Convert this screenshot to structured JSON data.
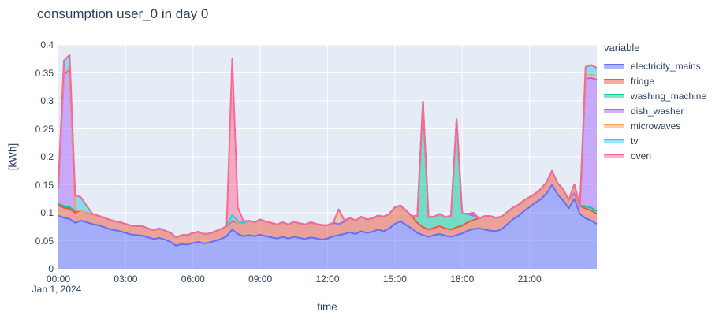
{
  "title": "consumption user_0 in day 0",
  "legend": {
    "title": "variable"
  },
  "chart_data": {
    "type": "area",
    "stacked": true,
    "title": "consumption user_0 in day 0",
    "xlabel": "time",
    "ylabel": "[kWh]",
    "x_date_label": "Jan 1, 2024",
    "x_range_hours": [
      0,
      24
    ],
    "sample_interval_minutes": 15,
    "x_tick_labels": [
      "00:00",
      "03:00",
      "06:00",
      "09:00",
      "12:00",
      "15:00",
      "18:00",
      "21:00"
    ],
    "x_tick_hours": [
      0,
      3,
      6,
      9,
      12,
      15,
      18,
      21
    ],
    "ylim": [
      0,
      0.4
    ],
    "y_ticks": [
      0,
      0.05,
      0.1,
      0.15,
      0.2,
      0.25,
      0.3,
      0.35,
      0.4
    ],
    "y_tick_labels": [
      "0",
      "0.05",
      "0.1",
      "0.15",
      "0.2",
      "0.25",
      "0.3",
      "0.35",
      "0.4"
    ],
    "plot_bg": "#E5ECF6",
    "grid_color": "#FFFFFF",
    "fill_opacity": 0.5,
    "line_width": 2,
    "legend_position": "right",
    "grid": true,
    "series": [
      {
        "name": "electricity_mains",
        "color": "#636EFA",
        "values": [
          0.095,
          0.091,
          0.089,
          0.082,
          0.086,
          0.083,
          0.08,
          0.078,
          0.075,
          0.071,
          0.069,
          0.067,
          0.064,
          0.061,
          0.06,
          0.059,
          0.056,
          0.053,
          0.055,
          0.052,
          0.048,
          0.041,
          0.044,
          0.043,
          0.046,
          0.048,
          0.045,
          0.047,
          0.05,
          0.053,
          0.058,
          0.07,
          0.062,
          0.058,
          0.06,
          0.058,
          0.061,
          0.058,
          0.056,
          0.054,
          0.057,
          0.054,
          0.057,
          0.055,
          0.053,
          0.056,
          0.054,
          0.052,
          0.054,
          0.058,
          0.06,
          0.062,
          0.065,
          0.062,
          0.067,
          0.064,
          0.066,
          0.07,
          0.067,
          0.072,
          0.08,
          0.085,
          0.078,
          0.072,
          0.064,
          0.06,
          0.057,
          0.06,
          0.062,
          0.059,
          0.057,
          0.06,
          0.063,
          0.068,
          0.071,
          0.072,
          0.07,
          0.068,
          0.067,
          0.07,
          0.079,
          0.088,
          0.094,
          0.103,
          0.11,
          0.118,
          0.124,
          0.134,
          0.15,
          0.133,
          0.122,
          0.108,
          0.125,
          0.098,
          0.09,
          0.086,
          0.08
        ]
      },
      {
        "name": "fridge",
        "color": "#EF553B",
        "values": [
          0.018,
          0.018,
          0.018,
          0.018,
          0.018,
          0.017,
          0.017,
          0.017,
          0.017,
          0.017,
          0.016,
          0.016,
          0.016,
          0.016,
          0.016,
          0.017,
          0.016,
          0.016,
          0.017,
          0.016,
          0.016,
          0.015,
          0.016,
          0.017,
          0.018,
          0.018,
          0.017,
          0.016,
          0.017,
          0.018,
          0.018,
          0.015,
          0.02,
          0.024,
          0.026,
          0.025,
          0.027,
          0.026,
          0.026,
          0.025,
          0.026,
          0.025,
          0.027,
          0.026,
          0.026,
          0.027,
          0.026,
          0.026,
          0.024,
          0.024,
          0.02,
          0.022,
          0.026,
          0.024,
          0.026,
          0.024,
          0.024,
          0.025,
          0.026,
          0.026,
          0.03,
          0.028,
          0.026,
          0.022,
          0.018,
          0.014,
          0.013,
          0.013,
          0.014,
          0.013,
          0.013,
          0.014,
          0.014,
          0.015,
          0.016,
          0.018,
          0.024,
          0.026,
          0.024,
          0.023,
          0.022,
          0.021,
          0.02,
          0.019,
          0.018,
          0.016,
          0.018,
          0.02,
          0.025,
          0.02,
          0.02,
          0.015,
          0.01,
          0.014,
          0.018,
          0.018,
          0.018
        ]
      },
      {
        "name": "washing_machine",
        "color": "#00CC96",
        "values": [
          0.003,
          0.003,
          0.003,
          0.003,
          0,
          0,
          0,
          0,
          0,
          0,
          0,
          0,
          0,
          0,
          0,
          0,
          0,
          0,
          0,
          0,
          0,
          0,
          0,
          0,
          0,
          0,
          0,
          0,
          0,
          0,
          0,
          0,
          0,
          0,
          0,
          0,
          0,
          0,
          0,
          0,
          0,
          0,
          0,
          0,
          0,
          0,
          0,
          0,
          0,
          0,
          0,
          0,
          0,
          0,
          0,
          0,
          0,
          0,
          0,
          0,
          0,
          0,
          0,
          0,
          0.012,
          0.225,
          0.022,
          0.02,
          0.022,
          0.02,
          0.025,
          0.193,
          0.022,
          0.015,
          0.008,
          0,
          0,
          0,
          0,
          0,
          0,
          0,
          0,
          0,
          0,
          0,
          0,
          0,
          0,
          0,
          0,
          0,
          0,
          0,
          0.004,
          0.005,
          0.005
        ]
      },
      {
        "name": "dish_washer",
        "color": "#AB63FA",
        "values": [
          0.028,
          0.235,
          0.245,
          0,
          0,
          0,
          0,
          0,
          0,
          0,
          0,
          0,
          0,
          0,
          0,
          0,
          0,
          0,
          0,
          0,
          0,
          0,
          0,
          0,
          0,
          0,
          0,
          0,
          0,
          0,
          0,
          0,
          0,
          0,
          0,
          0,
          0,
          0,
          0,
          0,
          0,
          0,
          0,
          0,
          0,
          0,
          0,
          0,
          0,
          0,
          0,
          0,
          0,
          0,
          0,
          0,
          0,
          0,
          0,
          0,
          0,
          0,
          0,
          0,
          0,
          0,
          0,
          0,
          0,
          0,
          0,
          0,
          0,
          0,
          0,
          0,
          0,
          0,
          0,
          0,
          0,
          0,
          0,
          0,
          0,
          0,
          0,
          0,
          0,
          0,
          0,
          0,
          0,
          0,
          0.228,
          0.232,
          0.235
        ]
      },
      {
        "name": "microwaves",
        "color": "#FFA15A",
        "values": [
          0.004,
          0.005,
          0.005,
          0.002,
          0,
          0,
          0,
          0,
          0,
          0,
          0,
          0,
          0,
          0,
          0,
          0,
          0,
          0,
          0,
          0,
          0,
          0,
          0,
          0,
          0,
          0,
          0,
          0,
          0,
          0,
          0,
          0.003,
          0,
          0,
          0,
          0,
          0,
          0,
          0,
          0,
          0,
          0,
          0,
          0,
          0,
          0,
          0,
          0,
          0,
          0,
          0.026,
          0.002,
          0,
          0,
          0,
          0,
          0,
          0,
          0,
          0,
          0,
          0,
          0,
          0,
          0,
          0,
          0,
          0,
          0,
          0,
          0,
          0,
          0,
          0,
          0.005,
          0,
          0,
          0,
          0,
          0,
          0,
          0,
          0,
          0,
          0,
          0,
          0,
          0,
          0,
          0,
          0,
          0,
          0.006,
          0,
          0.005,
          0.006,
          0.006
        ]
      },
      {
        "name": "tv",
        "color": "#19D3F3",
        "values": [
          0.002,
          0.02,
          0.022,
          0.026,
          0.024,
          0.013,
          0.002,
          0,
          0,
          0,
          0,
          0,
          0,
          0,
          0,
          0,
          0,
          0,
          0,
          0,
          0,
          0,
          0,
          0,
          0,
          0,
          0,
          0,
          0,
          0,
          0,
          0.008,
          0.003,
          0,
          0,
          0,
          0,
          0,
          0,
          0,
          0,
          0,
          0,
          0,
          0,
          0,
          0,
          0,
          0,
          0,
          0,
          0,
          0,
          0,
          0,
          0,
          0,
          0,
          0,
          0,
          0,
          0,
          0,
          0,
          0,
          0,
          0,
          0,
          0,
          0,
          0,
          0,
          0,
          0,
          0,
          0,
          0,
          0,
          0,
          0,
          0,
          0,
          0,
          0,
          0,
          0,
          0,
          0,
          0,
          0,
          0,
          0,
          0.01,
          0,
          0.016,
          0.017,
          0.015
        ]
      },
      {
        "name": "oven",
        "color": "#FF6692",
        "values": [
          0,
          0,
          0,
          0,
          0,
          0,
          0,
          0,
          0,
          0,
          0,
          0,
          0,
          0,
          0,
          0,
          0,
          0,
          0,
          0,
          0,
          0,
          0,
          0,
          0,
          0,
          0,
          0,
          0,
          0,
          0,
          0.28,
          0.025,
          0.003,
          0,
          0,
          0,
          0,
          0,
          0,
          0,
          0,
          0,
          0,
          0,
          0,
          0,
          0,
          0,
          0,
          0,
          0,
          0,
          0,
          0,
          0,
          0,
          0,
          0,
          0,
          0,
          0,
          0,
          0,
          0,
          0,
          0,
          0,
          0,
          0,
          0,
          0,
          0,
          0,
          0,
          0,
          0,
          0,
          0,
          0,
          0,
          0,
          0,
          0,
          0,
          0,
          0,
          0,
          0,
          0,
          0,
          0,
          0,
          0,
          0,
          0,
          0
        ]
      }
    ]
  }
}
